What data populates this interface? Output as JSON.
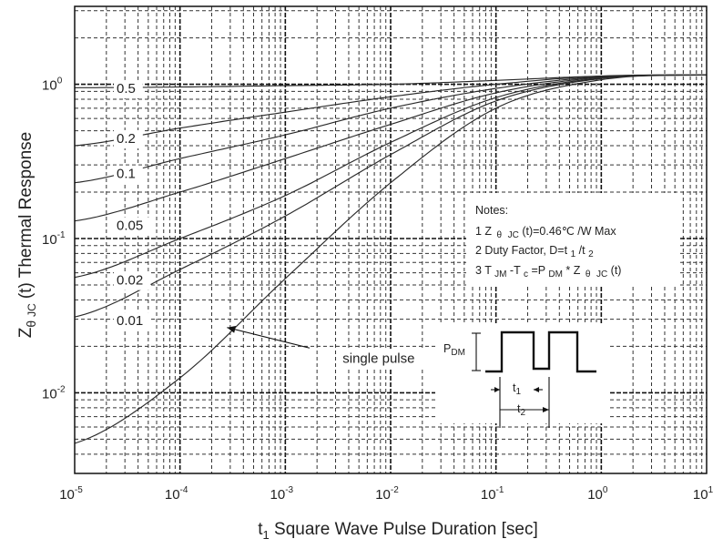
{
  "chart_data": {
    "type": "line",
    "title": "",
    "xlabel": "t",
    "xlabel_sub": "1",
    "xlabel_rest": " Square Wave Pulse Duration [sec]",
    "ylabel_parts": {
      "z": "Z",
      "theta": "θ",
      "jc": "JC",
      "rest": "(t) Thermal Response"
    },
    "x_scale": "log",
    "y_scale": "log",
    "xlim": [
      1e-05,
      10
    ],
    "ylim": [
      0.003,
      3.2
    ],
    "grid": true,
    "x_ticks": [
      {
        "base": "10",
        "exp": "-5",
        "value": 1e-05
      },
      {
        "base": "10",
        "exp": "-4",
        "value": 0.0001
      },
      {
        "base": "10",
        "exp": "-3",
        "value": 0.001
      },
      {
        "base": "10",
        "exp": "-2",
        "value": 0.01
      },
      {
        "base": "10",
        "exp": "-1",
        "value": 0.1
      },
      {
        "base": "10",
        "exp": "0",
        "value": 1
      },
      {
        "base": "10",
        "exp": "1",
        "value": 10
      }
    ],
    "y_ticks": [
      {
        "base": "10",
        "exp": "0",
        "value": 1
      },
      {
        "base": "10",
        "exp": "-1",
        "value": 0.1
      },
      {
        "base": "10",
        "exp": "-2",
        "value": 0.01
      }
    ],
    "series": [
      {
        "name": "0.5",
        "label_at": [
          2.5e-05,
          0.93
        ],
        "points": [
          [
            1e-05,
            0.95
          ],
          [
            0.0001,
            0.96
          ],
          [
            0.001,
            0.98
          ],
          [
            0.01,
            1.0
          ],
          [
            0.1,
            1.06
          ],
          [
            1,
            1.13
          ],
          [
            10,
            1.15
          ]
        ]
      },
      {
        "name": "0.2",
        "label_at": [
          2.5e-05,
          0.44
        ],
        "points": [
          [
            1e-05,
            0.4
          ],
          [
            0.0001,
            0.52
          ],
          [
            0.001,
            0.66
          ],
          [
            0.01,
            0.83
          ],
          [
            0.1,
            1.0
          ],
          [
            1,
            1.13
          ],
          [
            10,
            1.15
          ]
        ]
      },
      {
        "name": "0.1",
        "label_at": [
          2.5e-05,
          0.26
        ],
        "points": [
          [
            1e-05,
            0.23
          ],
          [
            0.0001,
            0.33
          ],
          [
            0.001,
            0.47
          ],
          [
            0.01,
            0.7
          ],
          [
            0.1,
            0.94
          ],
          [
            1,
            1.12
          ],
          [
            10,
            1.15
          ]
        ]
      },
      {
        "name": "0.05",
        "label_at": [
          2.5e-05,
          0.12
        ],
        "points": [
          [
            1e-05,
            0.13
          ],
          [
            0.0001,
            0.2
          ],
          [
            0.001,
            0.33
          ],
          [
            0.01,
            0.55
          ],
          [
            0.1,
            0.88
          ],
          [
            1,
            1.11
          ],
          [
            10,
            1.15
          ]
        ]
      },
      {
        "name": "0.02",
        "label_at": [
          2.5e-05,
          0.053
        ],
        "points": [
          [
            1e-05,
            0.056
          ],
          [
            0.0001,
            0.1
          ],
          [
            0.001,
            0.19
          ],
          [
            0.01,
            0.42
          ],
          [
            0.1,
            0.82
          ],
          [
            1,
            1.1
          ],
          [
            10,
            1.15
          ]
        ]
      },
      {
        "name": "0.01",
        "label_at": [
          2.5e-05,
          0.029
        ],
        "points": [
          [
            1e-05,
            0.031
          ],
          [
            0.0001,
            0.063
          ],
          [
            0.001,
            0.14
          ],
          [
            0.01,
            0.35
          ],
          [
            0.1,
            0.78
          ],
          [
            1,
            1.09
          ],
          [
            10,
            1.15
          ]
        ]
      },
      {
        "name": "single pulse",
        "label_at": [
          0.0035,
          0.0165
        ],
        "points": [
          [
            1e-05,
            0.0047
          ],
          [
            0.0001,
            0.0125
          ],
          [
            0.001,
            0.055
          ],
          [
            0.01,
            0.23
          ],
          [
            0.1,
            0.7
          ],
          [
            1,
            1.07
          ],
          [
            10,
            1.15
          ]
        ]
      }
    ],
    "arrow": {
      "from": [
        0.0017,
        0.0195
      ],
      "to": [
        0.00028,
        0.0265
      ]
    },
    "notes": {
      "title": "Notes:",
      "line1": {
        "z": "1 Z",
        "theta": "θ",
        "jc": "JC",
        "rest": "(t)=0.46℃ /W Max"
      },
      "line2": {
        "text": "2 Duty Factor, D=t",
        "s1": "1",
        "slash": "/t",
        "s2": "2"
      },
      "line3": {
        "t": "3 T",
        "jm": "JM",
        "mid": "-T",
        "c": "c",
        "eq": "=P",
        "dm": "DM",
        "star": "* Z",
        "theta": "θ",
        "jc": "JC",
        "end": "(t)"
      }
    },
    "inset": {
      "pdm": "P",
      "pdm_sub": "DM",
      "t1": "t",
      "t1_sub": "1",
      "t2": "t",
      "t2_sub": "2"
    }
  }
}
